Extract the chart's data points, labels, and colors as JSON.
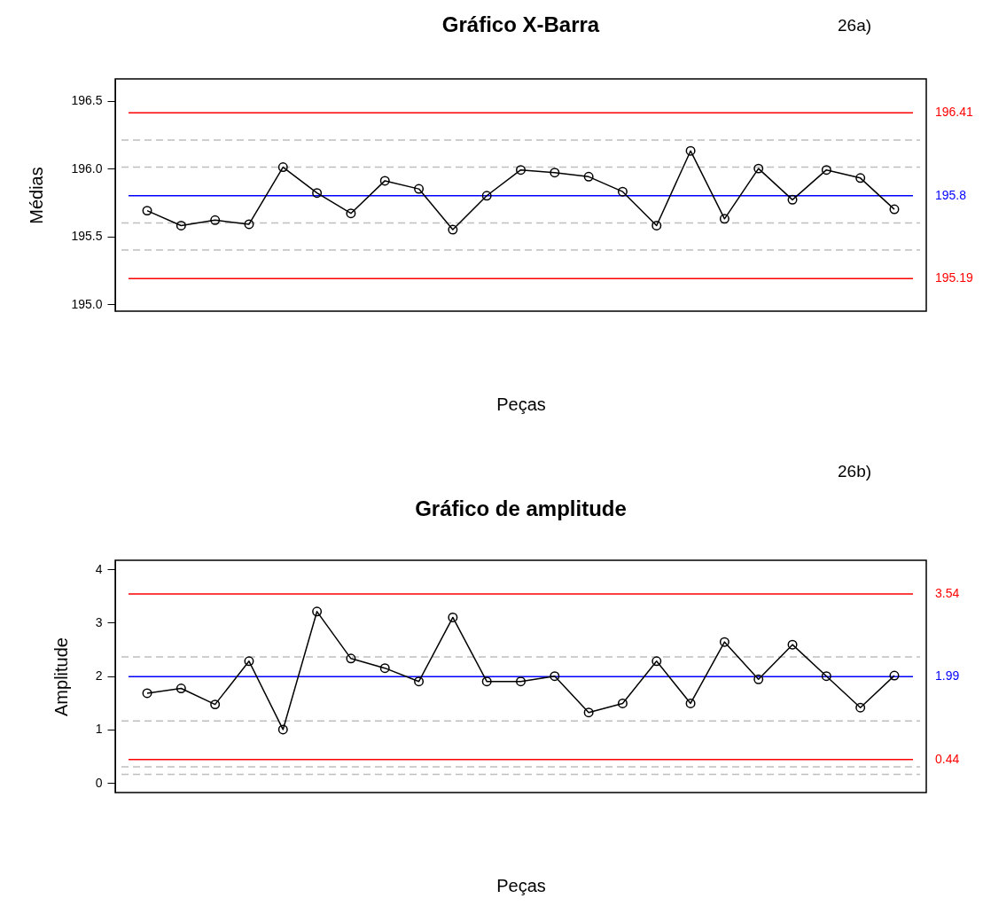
{
  "chart_data": [
    {
      "type": "line",
      "title": "Gráfico X-Barra",
      "xlabel": "Peças",
      "ylabel": "Médias",
      "annotations": [
        "26a)"
      ],
      "categories": [
        null,
        null,
        null,
        null,
        null,
        null,
        null,
        null,
        null,
        null,
        null,
        null,
        null,
        null,
        null,
        null,
        null,
        null,
        null,
        null,
        null,
        null,
        null
      ],
      "series": [
        {
          "color": "#000000",
          "values": [
            195.69,
            195.58,
            195.62,
            195.59,
            196.01,
            195.82,
            195.67,
            195.91,
            195.85,
            195.55,
            195.8,
            195.99,
            195.97,
            195.94,
            195.83,
            195.58,
            196.13,
            195.63,
            196.0,
            195.77,
            195.99,
            195.93,
            195.7
          ]
        }
      ],
      "marker": "circle",
      "line_style": "solid",
      "ylim": [
        194.95,
        196.66
      ],
      "yticks": [
        {
          "value": 195,
          "label": "195.0"
        },
        195.5,
        {
          "value": 196,
          "label": "196.0"
        },
        196.5
      ],
      "tick_labels": "y",
      "grid": false,
      "ref_lines": [
        {
          "axis": "y",
          "value": 196.41,
          "label": "196.41",
          "color": "#ff0000",
          "line_style": "solid"
        },
        {
          "axis": "y",
          "value": 195.8,
          "label": "195.8",
          "color": "#0000ff",
          "line_style": "solid"
        },
        {
          "axis": "y",
          "value": 195.19,
          "label": "195.19",
          "color": "#ff0000",
          "line_style": "solid"
        },
        {
          "axis": "y",
          "value": 196.21,
          "label": null,
          "color": "#bebebe",
          "line_style": "dashed"
        },
        {
          "axis": "y",
          "value": 196.01,
          "label": null,
          "color": "#bebebe",
          "line_style": "dashed"
        },
        {
          "axis": "y",
          "value": 195.6,
          "label": null,
          "color": "#bebebe",
          "line_style": "dashed"
        },
        {
          "axis": "y",
          "value": 195.4,
          "label": null,
          "color": "#bebebe",
          "line_style": "dashed"
        }
      ]
    },
    {
      "type": "line",
      "title": "Gráfico de amplitude",
      "xlabel": "Peças",
      "ylabel": "Amplitude",
      "annotations": [
        "26b)"
      ],
      "categories": [
        null,
        null,
        null,
        null,
        null,
        null,
        null,
        null,
        null,
        null,
        null,
        null,
        null,
        null,
        null,
        null,
        null,
        null,
        null,
        null,
        null,
        null,
        null
      ],
      "series": [
        {
          "color": "#000000",
          "values": [
            1.68,
            1.77,
            1.47,
            2.28,
            1.0,
            3.21,
            2.33,
            2.15,
            1.9,
            3.1,
            1.9,
            1.9,
            2.0,
            1.32,
            1.49,
            2.28,
            1.49,
            2.64,
            1.94,
            2.59,
            2.0,
            1.41,
            2.01
          ]
        }
      ],
      "marker": "circle",
      "line_style": "solid",
      "ylim": [
        -0.18,
        4.17
      ],
      "yticks": [
        0,
        1,
        2,
        3,
        4
      ],
      "tick_labels": "y",
      "grid": false,
      "ref_lines": [
        {
          "axis": "y",
          "value": 3.54,
          "label": "3.54",
          "color": "#ff0000",
          "line_style": "solid"
        },
        {
          "axis": "y",
          "value": 1.99,
          "label": "1.99",
          "color": "#0000ff",
          "line_style": "solid"
        },
        {
          "axis": "y",
          "value": 0.44,
          "label": "0.44",
          "color": "#ff0000",
          "line_style": "solid"
        },
        {
          "axis": "y",
          "value": 2.36,
          "label": null,
          "color": "#bebebe",
          "line_style": "dashed"
        },
        {
          "axis": "y",
          "value": 1.16,
          "label": null,
          "color": "#bebebe",
          "line_style": "dashed"
        },
        {
          "axis": "y",
          "value": 0.3,
          "label": null,
          "color": "#bebebe",
          "line_style": "dashed"
        },
        {
          "axis": "y",
          "value": 0.16,
          "label": null,
          "color": "#bebebe",
          "line_style": "dashed"
        }
      ]
    }
  ]
}
